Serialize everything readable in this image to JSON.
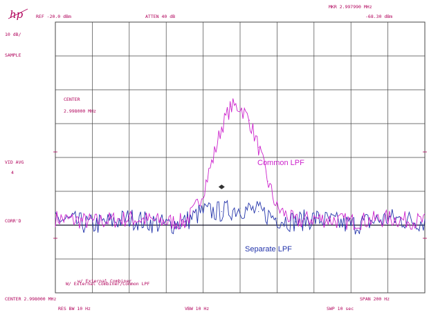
{
  "header": {
    "logo": "hp",
    "ref": "REF -20.0  dBm",
    "atten": "ATTEN 40  dB",
    "marker_freq": "MKR 2.997990 MHz",
    "marker_level": "-68.30  dBm"
  },
  "left_panel": {
    "scale": "10  dB/",
    "detector": "SAMPLE",
    "center_label": "CENTER",
    "center_value": "2.998000  MHz",
    "vid_avg_label": "VID AVG",
    "vid_avg_value": "4",
    "corrected": "CORR'D"
  },
  "footer": {
    "center": "CENTER 2.998000  MHz",
    "span": "SPAN 200  Hz",
    "res_bw": "RES BW 10  Hz",
    "vbw": "VBW 10  Hz",
    "sweep": "SWP 10    sec"
  },
  "notes": {
    "line1": "w/ External Combiner",
    "line2": "W/ External Combiner/Common LPF"
  },
  "colors": {
    "common": "#cc22cc",
    "separate": "#2233aa",
    "reference_line": "#101028",
    "grid": "#444444",
    "annotation": "#b0005a"
  },
  "chart_data": {
    "type": "line",
    "x_divisions": 10,
    "y_divisions": 8,
    "xlim": [
      2.9979,
      2.9981
    ],
    "x_unit": "MHz",
    "ylim": [
      -100,
      -20
    ],
    "y_unit": "dBm",
    "series": [
      {
        "name": "Common LPF",
        "color": "#cc22cc",
        "x": [
          2.9979,
          2.99792,
          2.99794,
          2.99796,
          2.99797,
          2.997975,
          2.99798,
          2.997985,
          2.99799,
          2.997995,
          2.998,
          2.998005,
          2.99801,
          2.998015,
          2.99802,
          2.99803,
          2.99804,
          2.99806,
          2.99808,
          2.9981
        ],
        "y": [
          -78,
          -79,
          -78,
          -79,
          -79,
          -76,
          -70,
          -61,
          -51,
          -45,
          -45,
          -49,
          -57,
          -67,
          -75,
          -79,
          -78,
          -79,
          -78,
          -79
        ]
      },
      {
        "name": "Separate LPF",
        "color": "#2233aa",
        "x": [
          2.9979,
          2.99792,
          2.99794,
          2.99796,
          2.99797,
          2.99798,
          2.99799,
          2.998,
          2.99801,
          2.99802,
          2.99803,
          2.99804,
          2.99806,
          2.99808,
          2.9981
        ],
        "y": [
          -78,
          -80,
          -78,
          -80,
          -79,
          -76,
          -76,
          -75,
          -76,
          -78,
          -79,
          -78,
          -80,
          -78,
          -79
        ]
      }
    ],
    "reference_line": -80,
    "marker": {
      "x": 2.99799,
      "y": -68.3
    },
    "annotations": [
      "Common LPF",
      "Separate LPF"
    ]
  }
}
